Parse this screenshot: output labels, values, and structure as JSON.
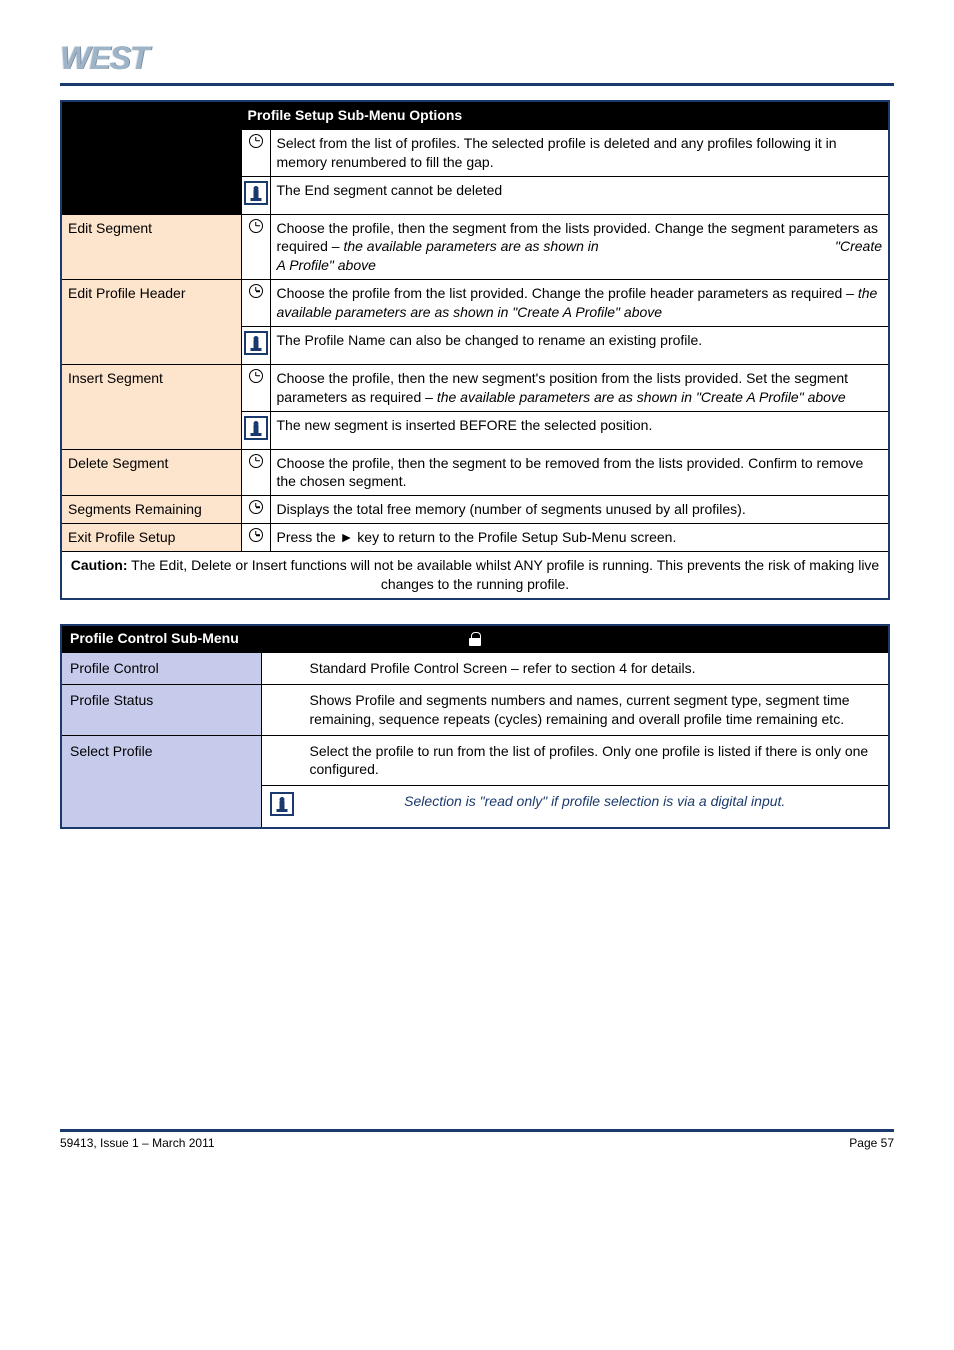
{
  "logo": "WEST",
  "table1": {
    "header": "Profile Setup Sub-Menu Options",
    "rows": [
      {
        "left": "",
        "icon": "clock",
        "text": "Select from the list of profiles. The selected profile is deleted and any profiles following it in memory renumbered to fill the gap."
      },
      {
        "left": "",
        "icon": "info",
        "text": "The End segment cannot be deleted"
      },
      {
        "left": "Edit Segment",
        "icon": "clock",
        "text_html": "Choose the profile, then the segment from the lists provided. Change the segment parameters as required – <span class='ital'>the available parameters are as shown in</span> <span class='right-ital'>\"Create</span><br><span class='ital'>A Profile\" above</span>"
      },
      {
        "left": "Edit Profile Header",
        "icon": "clock",
        "text_html": "Choose the profile from the list provided. Change the profile header parameters as required – <span class='ital'>the available parameters are as shown in \"Create A Profile\" above</span>"
      },
      {
        "left": "",
        "icon": "info",
        "text": "The Profile Name can also be changed to rename an existing profile."
      },
      {
        "left": "Insert Segment",
        "icon": "clock",
        "text_html": "Choose the profile, then the new segment's position from the lists provided. Set the segment parameters as required – <span class='ital'>the available parameters are as shown in \"Create A Profile\" above</span>"
      },
      {
        "left": "",
        "icon": "info",
        "text": "The new segment is inserted BEFORE the selected position."
      },
      {
        "left": "Delete Segment",
        "icon": "clock",
        "text": "Choose the profile, then the segment to be removed from the lists provided. Confirm to remove the chosen segment."
      },
      {
        "left": "Segments Remaining",
        "icon": "clock",
        "text": "Displays the total free memory (number of segments unused by all profiles)."
      },
      {
        "left": "Exit Profile Setup",
        "icon": "clock",
        "text_html": "Press the <b>&#9658;</b> key to return to the Profile Setup Sub-Menu screen."
      }
    ],
    "caution": "The Edit, Delete or Insert functions will not be available whilst ANY profile is running. This prevents the risk of making live changes to the running profile."
  },
  "table2": {
    "header_left": "Profile Control Sub-Menu",
    "header_right": "",
    "rows": [
      {
        "left": "Profile Control",
        "text": "Standard Profile Control Screen – refer to section 4 for details."
      },
      {
        "left": "Profile Status",
        "text": "Shows Profile and segments numbers and names, current segment type, segment time remaining, sequence repeats (cycles) remaining and overall profile time remaining etc."
      },
      {
        "left": "Select Profile",
        "text": "Select the profile to run from the list of profiles. Only one profile is listed if there is only one configured.",
        "note": "Selection is \"read only\" if profile selection is via a digital input.",
        "note_icon": "info"
      }
    ]
  },
  "footer": {
    "left": "59413, Issue 1 – March 2011",
    "right": "Page 57"
  },
  "colors": {
    "brand_rule": "#1a3a6e",
    "table1_left_bg": "#fde4cd",
    "table2_left_bg": "#c6cbec",
    "logo_color": "#9fb4c7"
  }
}
